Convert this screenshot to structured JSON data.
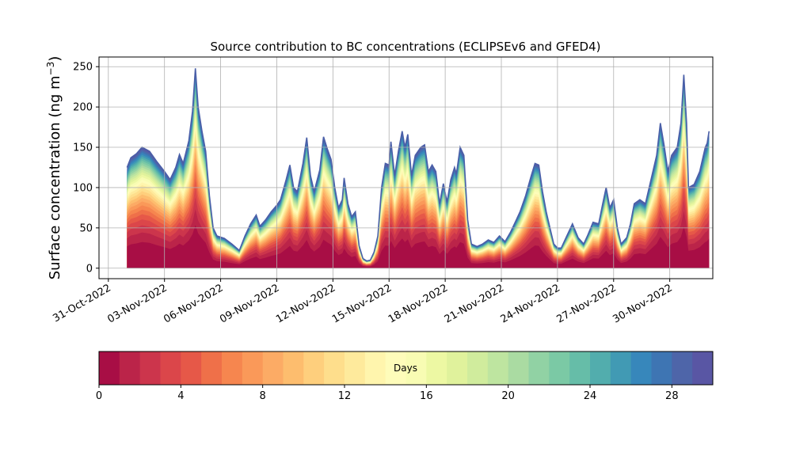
{
  "chart_data": [
    {
      "type": "area",
      "stacked": true,
      "title": "Source contribution to BC concentrations (ECLIPSEv6 and GFED4)",
      "ylabel_prefix": "Surface concentration (ng m",
      "ylabel_sup": "−3",
      "ylabel_suffix": ")",
      "xlabel": "",
      "x_tick_labels": [
        "31-Oct-2022",
        "03-Nov-2022",
        "06-Nov-2022",
        "09-Nov-2022",
        "12-Nov-2022",
        "15-Nov-2022",
        "18-Nov-2022",
        "21-Nov-2022",
        "24-Nov-2022",
        "27-Nov-2022",
        "30-Nov-2022"
      ],
      "x_tick_days": [
        0,
        3,
        6,
        9,
        12,
        15,
        18,
        21,
        24,
        27,
        30
      ],
      "xlim_days": [
        -0.5,
        32.3
      ],
      "ylim": [
        -13,
        262
      ],
      "y_ticks": [
        0,
        50,
        100,
        150,
        200,
        250
      ],
      "grid": true,
      "num_layers": 30,
      "layer_unit": "Days",
      "total_series": [
        [
          1.0,
          125
        ],
        [
          1.2,
          137
        ],
        [
          1.5,
          142
        ],
        [
          1.8,
          150
        ],
        [
          2.2,
          145
        ],
        [
          2.6,
          132
        ],
        [
          3.0,
          120
        ],
        [
          3.3,
          110
        ],
        [
          3.6,
          125
        ],
        [
          3.8,
          141
        ],
        [
          4.0,
          130
        ],
        [
          4.3,
          158
        ],
        [
          4.5,
          195
        ],
        [
          4.65,
          248
        ],
        [
          4.8,
          200
        ],
        [
          5.0,
          170
        ],
        [
          5.2,
          145
        ],
        [
          5.4,
          90
        ],
        [
          5.6,
          50
        ],
        [
          5.8,
          40
        ],
        [
          6.2,
          37
        ],
        [
          6.6,
          30
        ],
        [
          7.0,
          22
        ],
        [
          7.3,
          40
        ],
        [
          7.6,
          55
        ],
        [
          7.9,
          66
        ],
        [
          8.1,
          52
        ],
        [
          8.4,
          60
        ],
        [
          8.7,
          70
        ],
        [
          9.0,
          78
        ],
        [
          9.2,
          85
        ],
        [
          9.5,
          110
        ],
        [
          9.7,
          128
        ],
        [
          9.9,
          100
        ],
        [
          10.1,
          95
        ],
        [
          10.4,
          130
        ],
        [
          10.6,
          162
        ],
        [
          10.8,
          115
        ],
        [
          11.0,
          95
        ],
        [
          11.3,
          122
        ],
        [
          11.5,
          163
        ],
        [
          11.7,
          148
        ],
        [
          11.9,
          135
        ],
        [
          12.1,
          100
        ],
        [
          12.3,
          75
        ],
        [
          12.5,
          85
        ],
        [
          12.6,
          112
        ],
        [
          12.8,
          80
        ],
        [
          13.0,
          64
        ],
        [
          13.2,
          70
        ],
        [
          13.4,
          28
        ],
        [
          13.6,
          12
        ],
        [
          13.8,
          9
        ],
        [
          14.0,
          10
        ],
        [
          14.2,
          20
        ],
        [
          14.4,
          40
        ],
        [
          14.6,
          100
        ],
        [
          14.8,
          130
        ],
        [
          15.0,
          128
        ],
        [
          15.1,
          157
        ],
        [
          15.3,
          115
        ],
        [
          15.5,
          145
        ],
        [
          15.7,
          170
        ],
        [
          15.85,
          150
        ],
        [
          16.0,
          166
        ],
        [
          16.2,
          115
        ],
        [
          16.4,
          140
        ],
        [
          16.7,
          150
        ],
        [
          16.9,
          153
        ],
        [
          17.1,
          120
        ],
        [
          17.3,
          128
        ],
        [
          17.5,
          120
        ],
        [
          17.7,
          80
        ],
        [
          17.9,
          105
        ],
        [
          18.1,
          82
        ],
        [
          18.3,
          110
        ],
        [
          18.5,
          125
        ],
        [
          18.6,
          117
        ],
        [
          18.8,
          150
        ],
        [
          19.0,
          140
        ],
        [
          19.2,
          60
        ],
        [
          19.4,
          30
        ],
        [
          19.7,
          27
        ],
        [
          20.0,
          30
        ],
        [
          20.3,
          35
        ],
        [
          20.6,
          32
        ],
        [
          20.9,
          40
        ],
        [
          21.2,
          33
        ],
        [
          21.5,
          45
        ],
        [
          21.8,
          60
        ],
        [
          22.0,
          70
        ],
        [
          22.3,
          90
        ],
        [
          22.6,
          115
        ],
        [
          22.8,
          130
        ],
        [
          23.0,
          128
        ],
        [
          23.2,
          95
        ],
        [
          23.4,
          70
        ],
        [
          23.6,
          50
        ],
        [
          23.8,
          30
        ],
        [
          24.0,
          25
        ],
        [
          24.2,
          25
        ],
        [
          24.5,
          40
        ],
        [
          24.8,
          55
        ],
        [
          25.1,
          38
        ],
        [
          25.4,
          30
        ],
        [
          25.6,
          40
        ],
        [
          25.9,
          57
        ],
        [
          26.2,
          55
        ],
        [
          26.4,
          78
        ],
        [
          26.6,
          100
        ],
        [
          26.8,
          75
        ],
        [
          27.0,
          85
        ],
        [
          27.2,
          50
        ],
        [
          27.4,
          30
        ],
        [
          27.7,
          38
        ],
        [
          27.9,
          55
        ],
        [
          28.1,
          80
        ],
        [
          28.4,
          85
        ],
        [
          28.7,
          80
        ],
        [
          29.0,
          110
        ],
        [
          29.3,
          140
        ],
        [
          29.5,
          180
        ],
        [
          29.7,
          152
        ],
        [
          29.9,
          120
        ],
        [
          30.1,
          140
        ],
        [
          30.4,
          150
        ],
        [
          30.6,
          180
        ],
        [
          30.75,
          240
        ],
        [
          30.9,
          180
        ],
        [
          31.0,
          100
        ],
        [
          31.3,
          104
        ],
        [
          31.6,
          120
        ],
        [
          31.9,
          150
        ],
        [
          32.0,
          155
        ],
        [
          32.1,
          170
        ]
      ],
      "colorbar": {
        "label": "Days",
        "ticks": [
          0,
          4,
          8,
          12,
          16,
          20,
          24,
          28
        ],
        "range": [
          0,
          30
        ],
        "colors": [
          "#9e0142",
          "#b51f48",
          "#cb334c",
          "#dc484a",
          "#e95d47",
          "#f47d4a",
          "#f99355",
          "#fca964",
          "#fdbf6f",
          "#fed481",
          "#fee593",
          "#fff2a8",
          "#fffcbb",
          "#f7fcb2",
          "#eaf79e",
          "#d8ef9b",
          "#c4e89f",
          "#acdca2",
          "#8fd1a4",
          "#74c6a5",
          "#5cb7aa",
          "#45a0b1",
          "#3689bc",
          "#3f73b2",
          "#5360a6",
          "#5e4fa2"
        ]
      }
    }
  ]
}
